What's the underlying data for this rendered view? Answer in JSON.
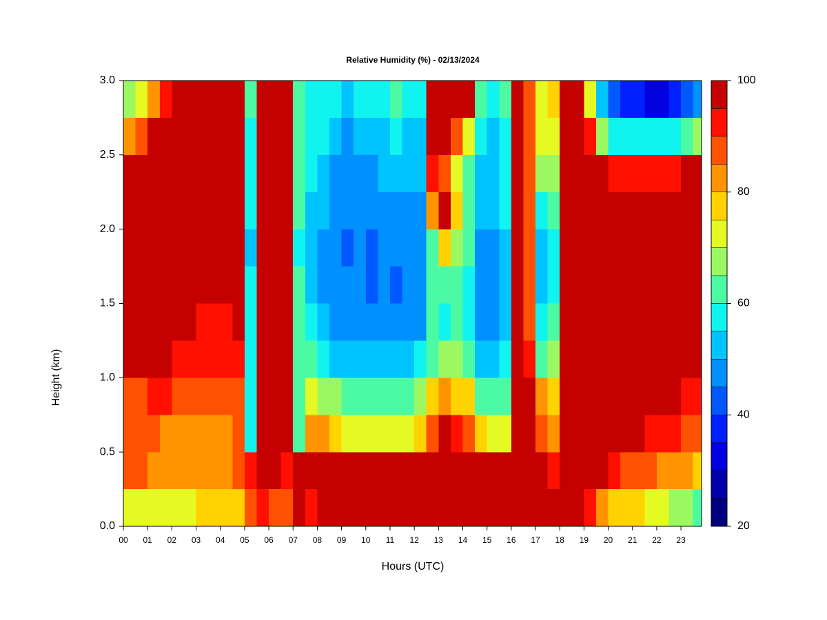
{
  "chart_data": {
    "type": "heatmap",
    "title": "Relative Humidity (%) - 02/13/2024",
    "xlabel": "Hours (UTC)",
    "ylabel": "Height (km)",
    "xlim": [
      0,
      23.85
    ],
    "ylim": [
      0,
      3
    ],
    "xticks": [
      {
        "value": 0,
        "label": "00"
      },
      {
        "value": 1,
        "label": "01"
      },
      {
        "value": 2,
        "label": "02"
      },
      {
        "value": 3,
        "label": "03"
      },
      {
        "value": 4,
        "label": "04"
      },
      {
        "value": 5,
        "label": "05"
      },
      {
        "value": 6,
        "label": "06"
      },
      {
        "value": 7,
        "label": "07"
      },
      {
        "value": 8,
        "label": "08"
      },
      {
        "value": 9,
        "label": "09"
      },
      {
        "value": 10,
        "label": "10"
      },
      {
        "value": 11,
        "label": "11"
      },
      {
        "value": 12,
        "label": "12"
      },
      {
        "value": 13,
        "label": "13"
      },
      {
        "value": 14,
        "label": "14"
      },
      {
        "value": 15,
        "label": "15"
      },
      {
        "value": 16,
        "label": "16"
      },
      {
        "value": 17,
        "label": "17"
      },
      {
        "value": 18,
        "label": "18"
      },
      {
        "value": 19,
        "label": "19"
      },
      {
        "value": 20,
        "label": "20"
      },
      {
        "value": 21,
        "label": "21"
      },
      {
        "value": 22,
        "label": "22"
      },
      {
        "value": 23,
        "label": "23"
      }
    ],
    "yticks": [
      {
        "value": 0,
        "label": "0.0"
      },
      {
        "value": 0.5,
        "label": "0.5"
      },
      {
        "value": 1,
        "label": "1.0"
      },
      {
        "value": 1.5,
        "label": "1.5"
      },
      {
        "value": 2,
        "label": "2.0"
      },
      {
        "value": 2.5,
        "label": "2.5"
      },
      {
        "value": 3,
        "label": "3.0"
      }
    ],
    "x": [
      0,
      0.5,
      1,
      1.5,
      2,
      2.5,
      3,
      3.5,
      4,
      4.5,
      5,
      5.5,
      6,
      6.5,
      7,
      7.5,
      8,
      8.5,
      9,
      9.5,
      10,
      10.5,
      11,
      11.5,
      12,
      12.5,
      13,
      13.5,
      14,
      14.5,
      15,
      15.5,
      16,
      16.5,
      17,
      17.5,
      18,
      18.5,
      19,
      19.5,
      20,
      20.5,
      21,
      21.5,
      22,
      22.5,
      23,
      23.5
    ],
    "y": [
      0,
      0.25,
      0.5,
      0.75,
      1,
      1.25,
      1.5,
      1.75,
      2,
      2.25,
      2.5,
      2.75
    ],
    "values": [
      [
        70,
        70,
        72,
        72,
        74,
        74,
        75,
        75,
        75,
        78,
        88,
        92,
        88,
        85,
        100,
        90,
        98,
        100,
        100,
        100,
        100,
        100,
        100,
        100,
        100,
        100,
        100,
        100,
        100,
        100,
        100,
        100,
        100,
        100,
        100,
        100,
        100,
        98,
        90,
        80,
        78,
        76,
        75,
        72,
        70,
        68,
        65,
        62
      ],
      [
        85,
        85,
        84,
        84,
        82,
        80,
        80,
        80,
        82,
        85,
        92,
        95,
        98,
        92,
        95,
        100,
        100,
        98,
        98,
        98,
        98,
        98,
        98,
        98,
        98,
        100,
        100,
        100,
        100,
        98,
        98,
        98,
        100,
        100,
        95,
        90,
        100,
        100,
        100,
        95,
        90,
        88,
        85,
        85,
        82,
        82,
        80,
        78
      ],
      [
        85,
        85,
        85,
        84,
        82,
        80,
        80,
        80,
        82,
        86,
        58,
        98,
        100,
        100,
        62,
        80,
        80,
        75,
        72,
        72,
        72,
        72,
        72,
        72,
        75,
        85,
        95,
        90,
        88,
        75,
        70,
        72,
        100,
        95,
        85,
        80,
        100,
        100,
        100,
        100,
        98,
        96,
        95,
        92,
        90,
        90,
        88,
        85
      ],
      [
        88,
        88,
        90,
        90,
        88,
        88,
        86,
        85,
        86,
        88,
        55,
        100,
        100,
        100,
        60,
        72,
        68,
        65,
        62,
        62,
        62,
        62,
        62,
        62,
        65,
        75,
        80,
        78,
        75,
        62,
        60,
        62,
        100,
        98,
        80,
        75,
        100,
        100,
        100,
        100,
        100,
        100,
        100,
        98,
        96,
        95,
        92,
        90
      ],
      [
        97,
        97,
        96,
        95,
        94,
        92,
        90,
        90,
        92,
        94,
        55,
        100,
        100,
        100,
        60,
        62,
        55,
        52,
        50,
        50,
        50,
        50,
        50,
        52,
        55,
        62,
        65,
        65,
        62,
        52,
        52,
        55,
        100,
        92,
        60,
        68,
        100,
        100,
        100,
        100,
        100,
        100,
        100,
        100,
        100,
        100,
        100,
        100
      ],
      [
        97,
        97,
        98,
        98,
        96,
        95,
        93,
        92,
        94,
        96,
        55,
        100,
        100,
        100,
        62,
        55,
        50,
        48,
        45,
        48,
        45,
        45,
        45,
        48,
        48,
        60,
        58,
        60,
        58,
        48,
        48,
        52,
        100,
        88,
        55,
        62,
        100,
        100,
        100,
        100,
        100,
        100,
        100,
        100,
        100,
        100,
        100,
        100
      ],
      [
        97,
        97,
        98,
        98,
        97,
        96,
        95,
        95,
        96,
        98,
        55,
        100,
        100,
        100,
        60,
        52,
        48,
        45,
        45,
        45,
        43,
        45,
        43,
        45,
        45,
        60,
        60,
        62,
        58,
        48,
        48,
        52,
        100,
        86,
        52,
        58,
        100,
        100,
        100,
        100,
        100,
        100,
        100,
        100,
        100,
        100,
        100,
        100
      ],
      [
        97,
        97,
        98,
        98,
        98,
        98,
        96,
        96,
        98,
        100,
        52,
        100,
        100,
        100,
        58,
        50,
        48,
        45,
        42,
        45,
        43,
        45,
        45,
        45,
        45,
        62,
        75,
        65,
        60,
        48,
        48,
        52,
        100,
        85,
        50,
        55,
        100,
        100,
        100,
        100,
        100,
        100,
        100,
        100,
        100,
        100,
        100,
        100
      ],
      [
        97,
        97,
        98,
        98,
        98,
        98,
        98,
        98,
        100,
        100,
        55,
        100,
        100,
        100,
        60,
        52,
        50,
        48,
        45,
        45,
        45,
        48,
        48,
        48,
        48,
        80,
        95,
        75,
        62,
        50,
        50,
        55,
        100,
        85,
        55,
        60,
        100,
        100,
        100,
        100,
        100,
        100,
        100,
        100,
        100,
        100,
        100,
        100
      ],
      [
        95,
        96,
        98,
        100,
        100,
        100,
        100,
        100,
        100,
        100,
        58,
        100,
        100,
        100,
        62,
        55,
        52,
        48,
        45,
        48,
        48,
        50,
        50,
        50,
        50,
        90,
        85,
        70,
        60,
        52,
        50,
        55,
        100,
        85,
        65,
        68,
        100,
        100,
        100,
        95,
        90,
        90,
        90,
        90,
        92,
        92,
        95,
        95
      ],
      [
        82,
        88,
        95,
        100,
        100,
        100,
        100,
        100,
        100,
        100,
        58,
        100,
        100,
        100,
        62,
        55,
        55,
        50,
        48,
        50,
        50,
        52,
        55,
        52,
        52,
        100,
        95,
        85,
        72,
        55,
        52,
        58,
        100,
        85,
        70,
        72,
        100,
        100,
        90,
        65,
        55,
        55,
        55,
        55,
        58,
        58,
        62,
        65
      ],
      [
        68,
        72,
        82,
        92,
        100,
        100,
        100,
        100,
        100,
        100,
        60,
        100,
        100,
        100,
        62,
        58,
        58,
        55,
        52,
        55,
        55,
        58,
        62,
        58,
        55,
        100,
        100,
        100,
        100,
        60,
        55,
        62,
        100,
        85,
        72,
        75,
        100,
        100,
        70,
        50,
        42,
        38,
        35,
        32,
        32,
        35,
        40,
        45
      ]
    ],
    "levels": [
      20,
      25,
      30,
      35,
      40,
      45,
      50,
      55,
      60,
      65,
      70,
      75,
      80,
      85,
      90,
      95,
      100
    ],
    "colors": [
      "#00007f",
      "#0000a8",
      "#0000e0",
      "#0020ff",
      "#0058ff",
      "#0090ff",
      "#00c4ff",
      "#10f4f0",
      "#4cfaa4",
      "#9cf860",
      "#e4fa22",
      "#ffd200",
      "#ff9400",
      "#ff5200",
      "#ff1000",
      "#c40000",
      "#800000"
    ],
    "cbticks": [
      20,
      40,
      60,
      80,
      100
    ]
  }
}
